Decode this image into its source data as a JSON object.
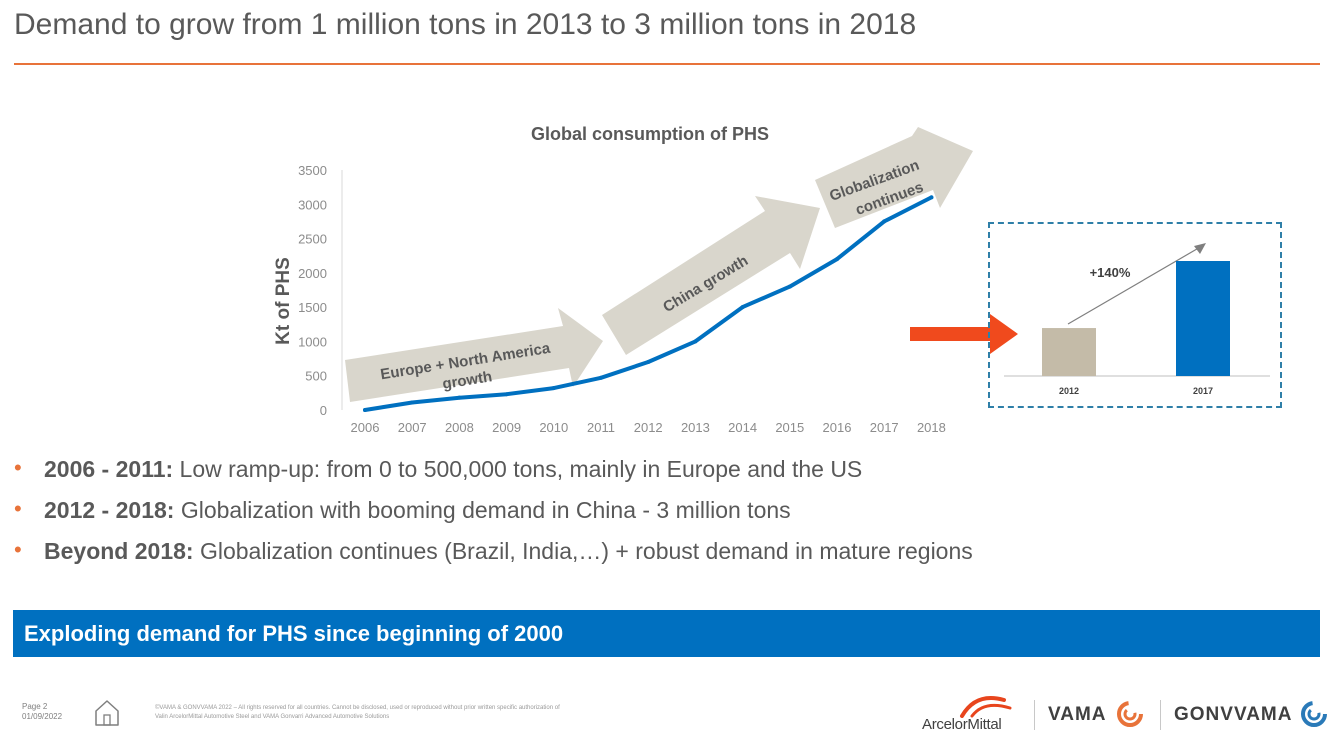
{
  "slide": {
    "title": "Demand to grow from 1 million tons in 2013 to 3 million tons in 2018"
  },
  "chart_data": [
    {
      "type": "line",
      "title": "Global consumption of PHS",
      "ylabel": "Kt of PHS",
      "xlabel": "",
      "x": [
        "2006",
        "2007",
        "2008",
        "2009",
        "2010",
        "2011",
        "2012",
        "2013",
        "2014",
        "2015",
        "2016",
        "2017",
        "2018"
      ],
      "series": [
        {
          "values": [
            0,
            110,
            180,
            230,
            320,
            470,
            700,
            1000,
            1500,
            1800,
            2200,
            2750,
            3100
          ]
        }
      ],
      "yticks": [
        0,
        500,
        1000,
        1500,
        2000,
        2500,
        3000,
        3500
      ],
      "ylim": [
        0,
        3500
      ],
      "color": "#0070c0",
      "annotations": [
        "Europe + North America growth",
        "China growth",
        "Globalization continues"
      ]
    },
    {
      "type": "bar",
      "categories": [
        "2012",
        "2017"
      ],
      "values": [
        0.417,
        1.0
      ],
      "colors": [
        "#c4bba8",
        "#0070c0"
      ],
      "annotation": "+140%"
    }
  ],
  "bullets": [
    {
      "bold": "2006 - 2011:",
      "text": " Low ramp-up: from 0 to 500,000 tons, mainly in Europe and the US"
    },
    {
      "bold": "2012 - 2018:",
      "text": " Globalization with booming demand in China - 3 million tons"
    },
    {
      "bold": "Beyond 2018:",
      "text": " Globalization continues (Brazil, India,…) + robust demand in mature regions"
    }
  ],
  "banner": {
    "text": "Exploding demand for PHS since beginning of 2000"
  },
  "footer": {
    "page": "Page 2",
    "date": "01/09/2022",
    "legal_1": "©VAMA & GONVVAMA 2022 – All rights reserved for all countries. Cannot be disclosed, used or reproduced without prior written specific authorization of",
    "legal_2": "Valin ArcelorMittal Automotive Steel and VAMA Gonvarri Advanced Automotive Solutions",
    "logo_arcelor": "ArcelorMittal",
    "logo_vama": "VAMA",
    "logo_gonvvama": "GONVVAMA"
  },
  "colors": {
    "accent": "#e8733a",
    "blue": "#0070c0",
    "arrow_fill": "#d9d6cc",
    "beige_bar": "#c4bba8",
    "red_arrow": "#f04a1d"
  }
}
